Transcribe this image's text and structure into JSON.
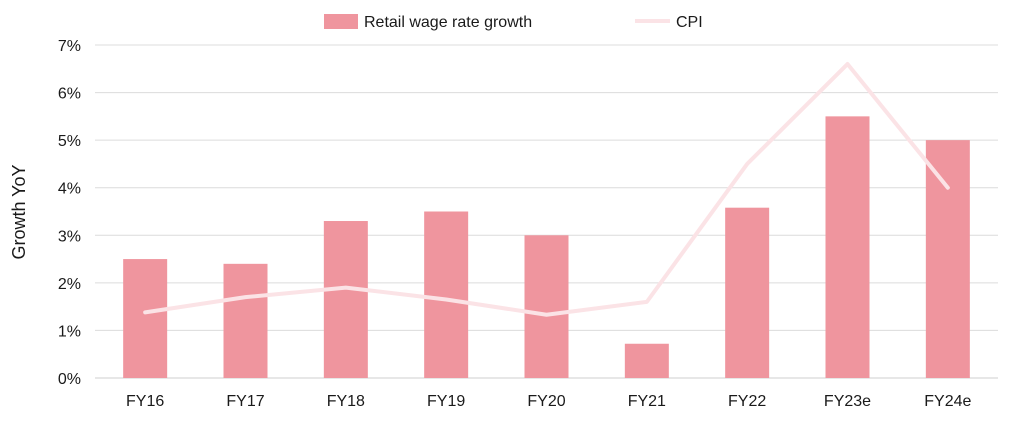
{
  "chart_data": {
    "type": "bar",
    "categories": [
      "FY16",
      "FY17",
      "FY18",
      "FY19",
      "FY20",
      "FY21",
      "FY22",
      "FY23e",
      "FY24e"
    ],
    "series": [
      {
        "name": "Retail wage rate growth",
        "type": "bar",
        "color": "#ef959e",
        "values": [
          2.5,
          2.4,
          3.3,
          3.5,
          3.0,
          0.72,
          3.58,
          5.5,
          5.0
        ]
      },
      {
        "name": "CPI",
        "type": "line",
        "color": "#fbe3e6",
        "values": [
          1.38,
          1.7,
          1.9,
          1.65,
          1.33,
          1.6,
          4.5,
          6.6,
          4.0
        ]
      }
    ],
    "ylabel": "Growth YoY",
    "xlabel": "",
    "ylim": [
      0,
      7
    ],
    "yticks": [
      "0%",
      "1%",
      "2%",
      "3%",
      "4%",
      "5%",
      "6%",
      "7%"
    ],
    "grid": true,
    "legend_position": "top-center"
  }
}
